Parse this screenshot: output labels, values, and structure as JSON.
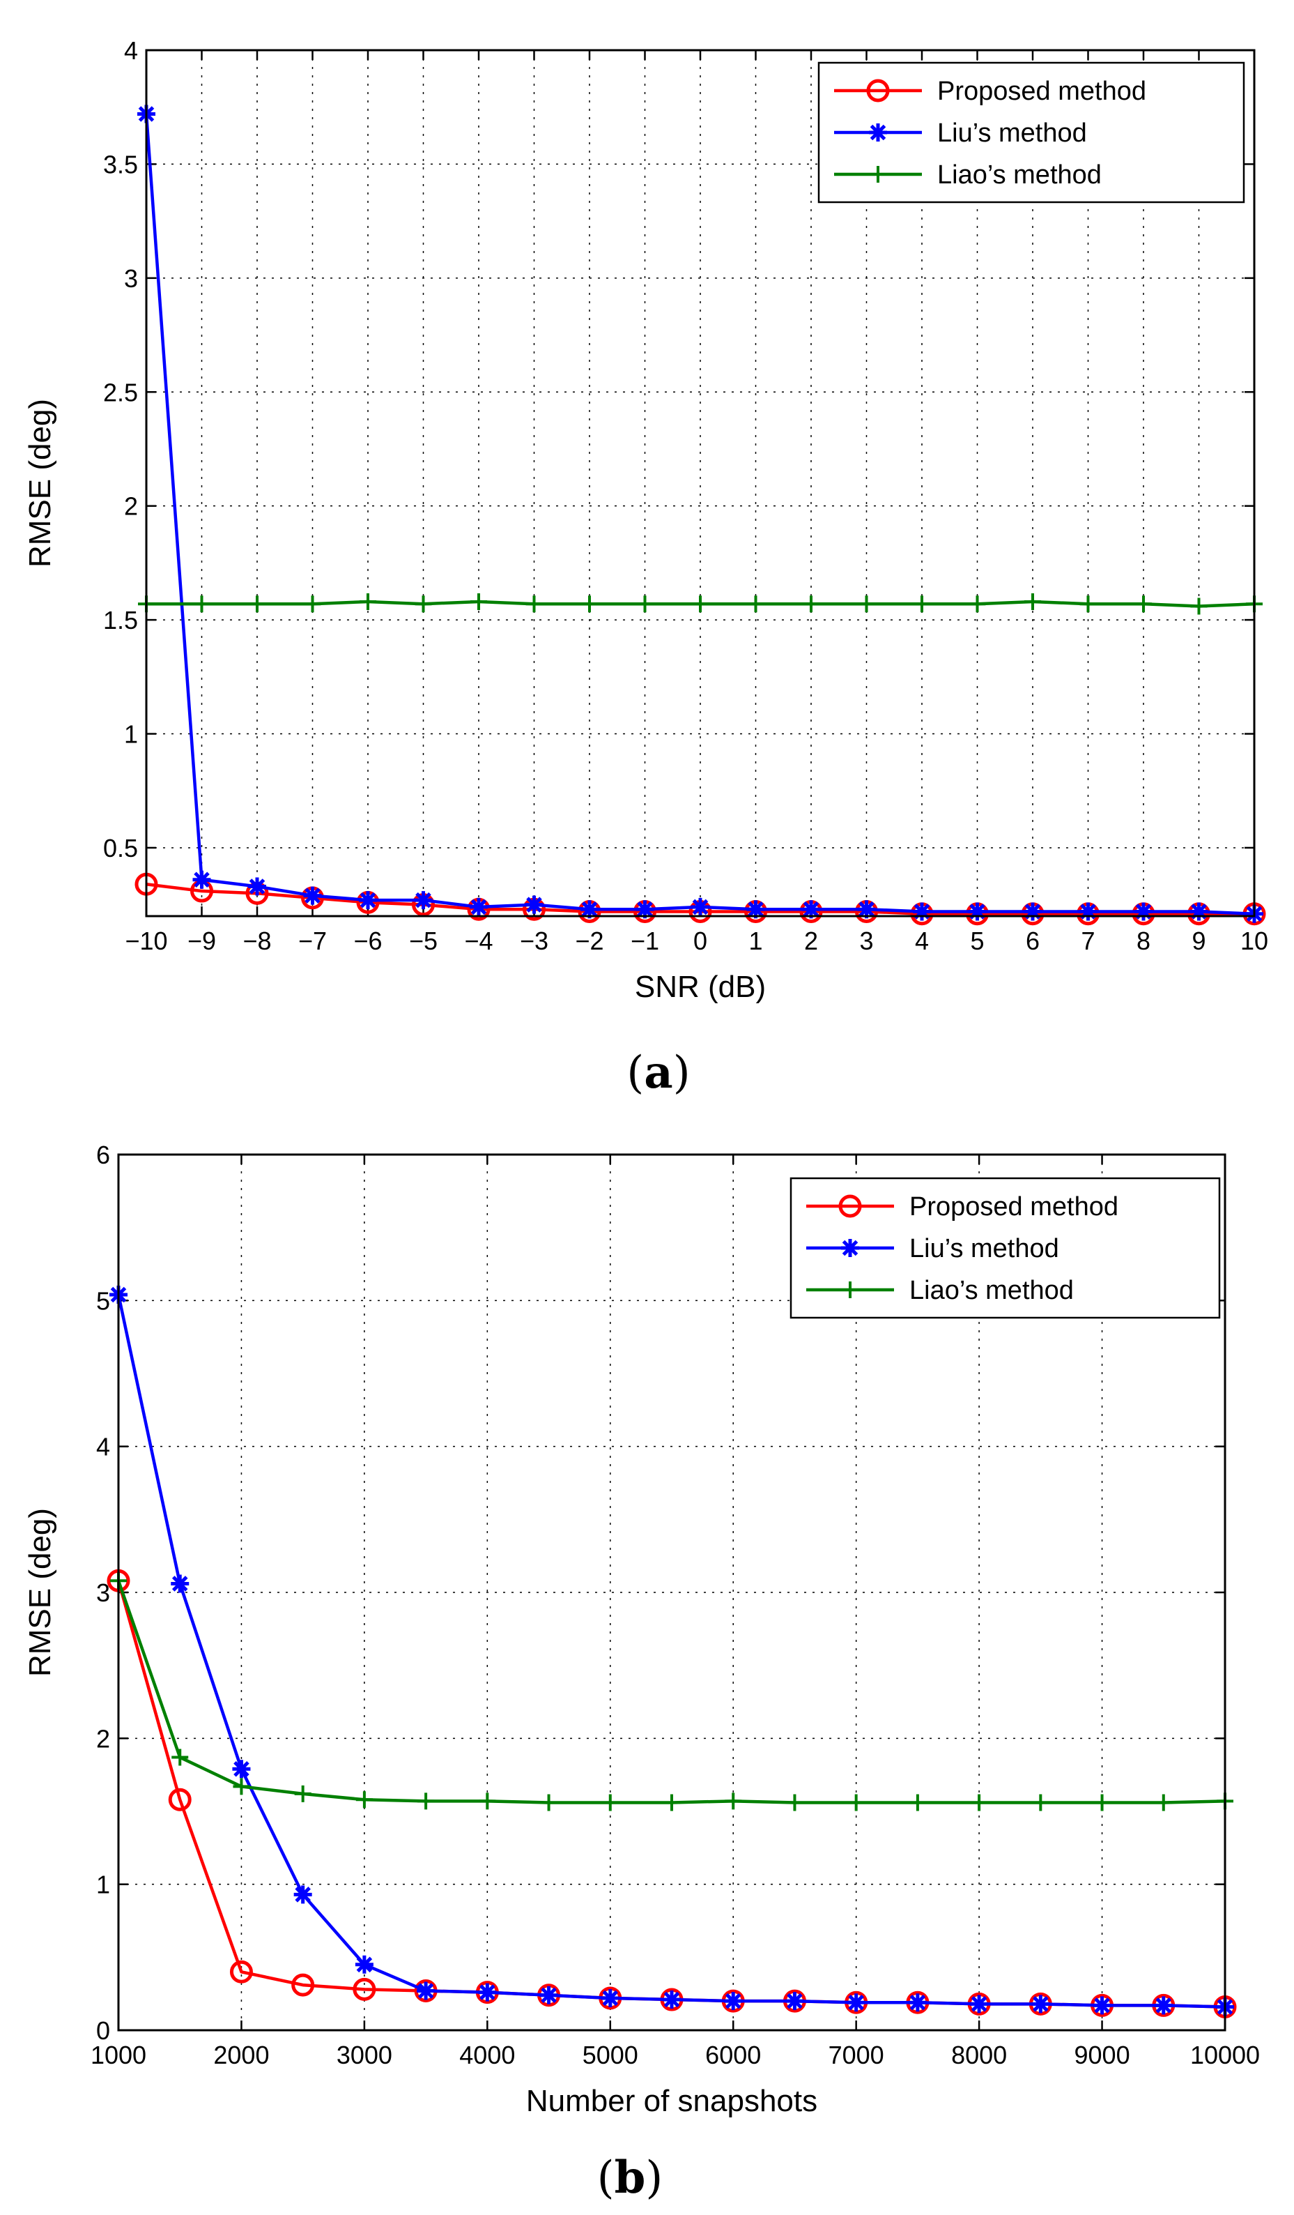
{
  "chart_data": [
    {
      "type": "line",
      "caption_letter": "a",
      "xlabel": "SNR (dB)",
      "ylabel": "RMSE (deg)",
      "xlim": [
        -10,
        10
      ],
      "ylim": [
        0.2,
        4
      ],
      "xticks": [
        -10,
        -9,
        -8,
        -7,
        -6,
        -5,
        -4,
        -3,
        -2,
        -1,
        0,
        1,
        2,
        3,
        4,
        5,
        6,
        7,
        8,
        9,
        10
      ],
      "xtick_labels": [
        "−10",
        "−9",
        "−8",
        "−7",
        "−6",
        "−5",
        "−4",
        "−3",
        "−2",
        "−1",
        "0",
        "1",
        "2",
        "3",
        "4",
        "5",
        "6",
        "7",
        "8",
        "9",
        "10"
      ],
      "yticks": [
        0.5,
        1,
        1.5,
        2,
        2.5,
        3,
        3.5,
        4
      ],
      "ytick_labels": [
        "0.5",
        "1",
        "1.5",
        "2",
        "2.5",
        "3",
        "3.5",
        "4"
      ],
      "grid": true,
      "legend_position": "top-right",
      "x": [
        -10,
        -9,
        -8,
        -7,
        -6,
        -5,
        -4,
        -3,
        -2,
        -1,
        0,
        1,
        2,
        3,
        4,
        5,
        6,
        7,
        8,
        9,
        10
      ],
      "series": [
        {
          "name": "Proposed method",
          "color": "#ff0000",
          "marker": "circle",
          "values": [
            0.34,
            0.31,
            0.3,
            0.28,
            0.26,
            0.25,
            0.23,
            0.23,
            0.22,
            0.22,
            0.22,
            0.22,
            0.22,
            0.22,
            0.21,
            0.21,
            0.21,
            0.21,
            0.21,
            0.21,
            0.21
          ]
        },
        {
          "name": "Liu’s method",
          "color": "#0000ff",
          "marker": "star",
          "values": [
            3.72,
            0.36,
            0.33,
            0.29,
            0.27,
            0.27,
            0.24,
            0.25,
            0.23,
            0.23,
            0.24,
            0.23,
            0.23,
            0.23,
            0.22,
            0.22,
            0.22,
            0.22,
            0.22,
            0.22,
            0.21
          ]
        },
        {
          "name": "Liao’s method",
          "color": "#008000",
          "marker": "plus",
          "values": [
            1.57,
            1.57,
            1.57,
            1.57,
            1.58,
            1.57,
            1.58,
            1.57,
            1.57,
            1.57,
            1.57,
            1.57,
            1.57,
            1.57,
            1.57,
            1.57,
            1.58,
            1.57,
            1.57,
            1.56,
            1.57
          ]
        }
      ]
    },
    {
      "type": "line",
      "caption_letter": "b",
      "xlabel": "Number of snapshots",
      "ylabel": "RMSE (deg)",
      "xlim": [
        1000,
        10000
      ],
      "ylim": [
        0,
        6
      ],
      "xticks": [
        1000,
        2000,
        3000,
        4000,
        5000,
        6000,
        7000,
        8000,
        9000,
        10000
      ],
      "xtick_labels": [
        "1000",
        "2000",
        "3000",
        "4000",
        "5000",
        "6000",
        "7000",
        "8000",
        "9000",
        "10000"
      ],
      "yticks": [
        0,
        1,
        2,
        3,
        4,
        5,
        6
      ],
      "ytick_labels": [
        "0",
        "1",
        "2",
        "3",
        "4",
        "5",
        "6"
      ],
      "grid": true,
      "legend_position": "top-right",
      "x": [
        1000,
        1500,
        2000,
        2500,
        3000,
        3500,
        4000,
        4500,
        5000,
        5500,
        6000,
        6500,
        7000,
        7500,
        8000,
        8500,
        9000,
        9500,
        10000
      ],
      "series": [
        {
          "name": "Proposed method",
          "color": "#ff0000",
          "marker": "circle",
          "values": [
            3.08,
            1.58,
            0.4,
            0.31,
            0.28,
            0.27,
            0.26,
            0.24,
            0.22,
            0.21,
            0.2,
            0.2,
            0.19,
            0.19,
            0.18,
            0.18,
            0.17,
            0.17,
            0.16
          ]
        },
        {
          "name": "Liu’s method",
          "color": "#0000ff",
          "marker": "star",
          "values": [
            5.04,
            3.06,
            1.79,
            0.93,
            0.45,
            0.27,
            0.26,
            0.24,
            0.22,
            0.21,
            0.2,
            0.2,
            0.19,
            0.19,
            0.18,
            0.18,
            0.17,
            0.17,
            0.16
          ]
        },
        {
          "name": "Liao’s method",
          "color": "#008000",
          "marker": "plus",
          "values": [
            3.08,
            1.87,
            1.67,
            1.62,
            1.58,
            1.57,
            1.57,
            1.56,
            1.56,
            1.56,
            1.57,
            1.56,
            1.56,
            1.56,
            1.56,
            1.56,
            1.56,
            1.56,
            1.57
          ]
        }
      ]
    }
  ]
}
